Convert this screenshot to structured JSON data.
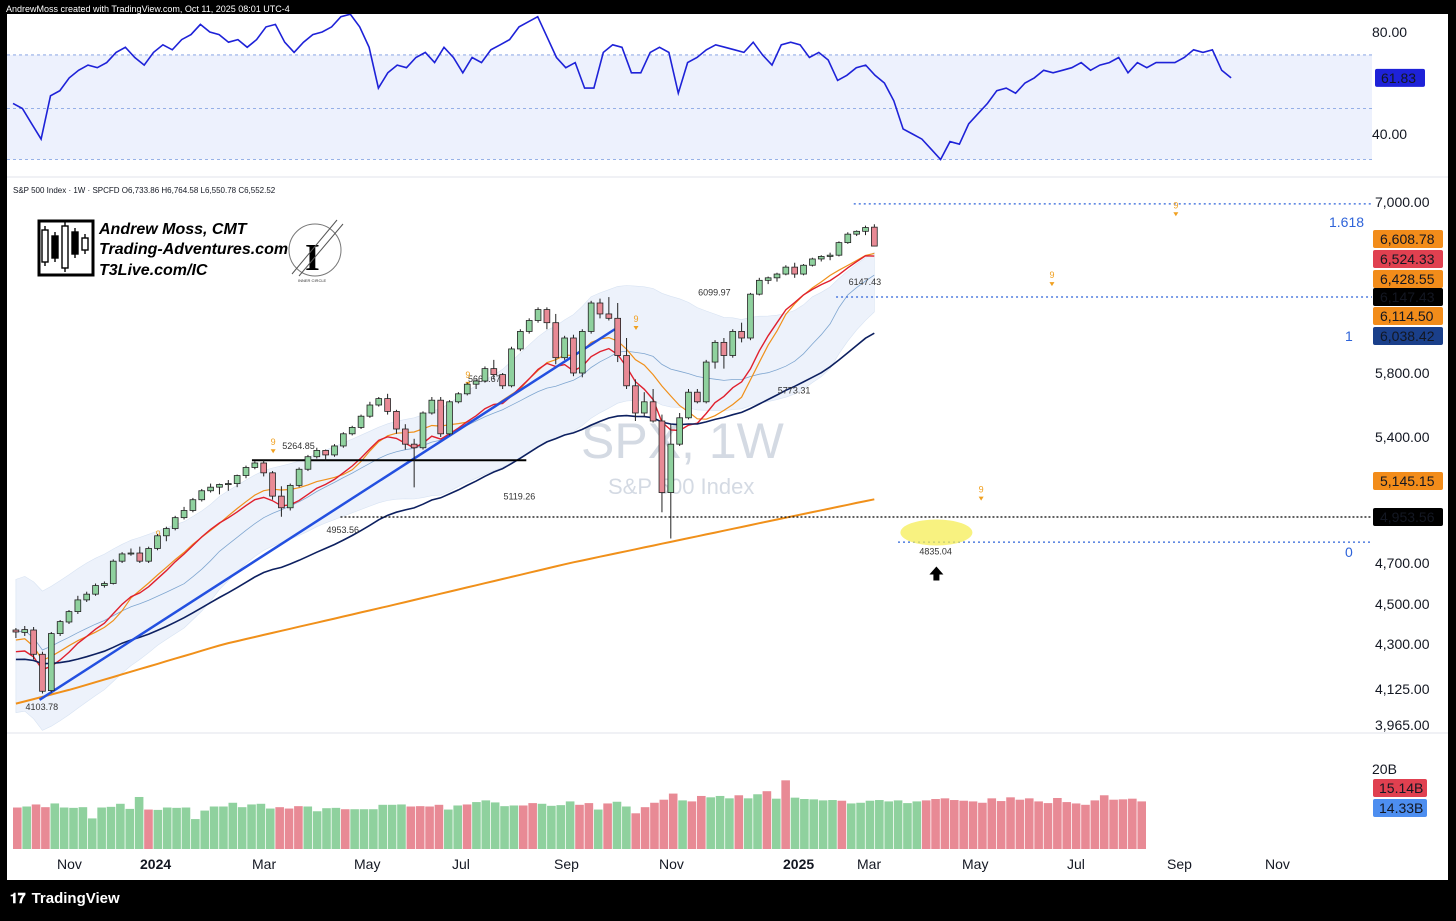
{
  "header": {
    "attribution": "AndrewMoss created with TradingView.com, Oct 11, 2025 08:01 UTC-4",
    "legend": "S&P 500 Index · 1W · SPCFD  O6,733.86  H6,764.58  L6,550.78  C6,552.52"
  },
  "watermark": {
    "symbol": "SPX, 1W",
    "name": "S&P 500 Index"
  },
  "branding": {
    "line1": "Andrew Moss, CMT",
    "line2": "Trading-Adventures.com",
    "line3": "T3Live.com/IC",
    "badge_text": "INNER CIRCLE"
  },
  "footer": {
    "brand": "TradingView"
  },
  "colors": {
    "up": "#8fd19e",
    "down": "#e88a95",
    "rsi": "#1e22d8",
    "ma_red": "#e0202e",
    "ma_orange": "#f0901a",
    "ma_navy": "#0d2060",
    "trend": "#2350e0",
    "fib": "#2e63d9"
  },
  "chart_data": [
    {
      "type": "line",
      "title": "RSI",
      "ylim": [
        26,
        93
      ],
      "y_ticks": [
        "80.00",
        "40.00"
      ],
      "last_value": "61.83",
      "bands": [
        71,
        50,
        30
      ],
      "values": [
        52,
        50,
        44,
        38,
        55,
        57,
        62,
        65,
        67,
        66,
        68,
        72,
        74,
        70,
        67,
        72,
        75,
        73,
        77,
        79,
        83,
        80,
        79,
        76,
        77,
        74,
        77,
        82,
        83,
        76,
        72,
        76,
        79,
        80,
        82,
        86,
        87,
        82,
        74,
        58,
        64,
        67,
        66,
        70,
        72,
        68,
        74,
        70,
        64,
        70,
        68,
        73,
        75,
        77,
        82,
        84,
        86,
        78,
        70,
        66,
        68,
        58,
        58,
        72,
        75,
        74,
        64,
        64,
        72,
        74,
        72,
        56,
        68,
        70,
        73,
        75,
        74,
        73,
        72,
        76,
        71,
        67,
        75,
        76,
        75,
        70,
        72,
        69,
        61,
        63,
        66,
        67,
        63,
        60,
        53,
        42,
        40,
        38,
        34,
        30,
        37,
        36,
        44,
        48,
        52,
        57,
        58,
        56,
        60,
        62,
        65,
        64,
        65,
        66,
        68,
        65,
        67,
        68,
        70,
        64,
        68,
        66,
        68,
        68,
        68,
        70,
        73,
        72,
        73,
        65,
        62
      ]
    },
    {
      "type": "candlestick",
      "title": "SPX, 1W",
      "x_labels": [
        "Nov",
        "2024",
        "Mar",
        "May",
        "Jul",
        "Sep",
        "Nov",
        "2025",
        "Mar",
        "May",
        "Jul",
        "Sep",
        "Nov"
      ],
      "y_ticks": [
        "7,000.00",
        "5,800.00",
        "5,400.00",
        "4,700.00",
        "4,500.00",
        "4,300.00",
        "4,125.00",
        "3,965.00"
      ],
      "price_labels": [
        {
          "text": "6,608.78",
          "bg": "#f28c1a",
          "fg": "#000000"
        },
        {
          "text": "6,524.33",
          "bg": "#e04050",
          "fg": "#ffffff"
        },
        {
          "text": "6,428.55",
          "bg": "#f28c1a",
          "fg": "#000000"
        },
        {
          "text": "6,147.43",
          "bg": "#000000",
          "fg": "#ffffff"
        },
        {
          "text": "6,114.50",
          "bg": "#f28c1a",
          "fg": "#000000"
        },
        {
          "text": "6,038.42",
          "bg": "#1a3f8a",
          "fg": "#ffffff"
        },
        {
          "text": "5,145.15",
          "bg": "#f28c1a",
          "fg": "#000000"
        },
        {
          "text": "4,953.56",
          "bg": "#000000",
          "fg": "#ffffff"
        }
      ],
      "fib_labels": [
        "1.618",
        "1",
        "0"
      ],
      "annotations": [
        "4103.78",
        "5264.85",
        "4953.56",
        "5669.67",
        "5119.26",
        "6099.97",
        "5773.31",
        "6147.43",
        "4835.04"
      ],
      "td_labels": [
        "9",
        "9",
        "9",
        "9",
        "9",
        "9",
        "9"
      ],
      "last_candle": {
        "open": 6733.86,
        "high": 6764.58,
        "low": 6550.78,
        "close": 6552.52
      },
      "candles": [
        [
          4370,
          4380,
          4330,
          4360
        ],
        [
          4358,
          4390,
          4340,
          4372
        ],
        [
          4370,
          4385,
          4240,
          4260
        ],
        [
          4260,
          4270,
          4105,
          4115
        ],
        [
          4118,
          4360,
          4110,
          4352
        ],
        [
          4352,
          4420,
          4340,
          4412
        ],
        [
          4410,
          4470,
          4400,
          4462
        ],
        [
          4462,
          4540,
          4450,
          4520
        ],
        [
          4520,
          4560,
          4510,
          4548
        ],
        [
          4548,
          4600,
          4540,
          4590
        ],
        [
          4590,
          4610,
          4580,
          4600
        ],
        [
          4600,
          4720,
          4595,
          4710
        ],
        [
          4710,
          4760,
          4700,
          4750
        ],
        [
          4750,
          4780,
          4740,
          4755
        ],
        [
          4755,
          4790,
          4700,
          4710
        ],
        [
          4710,
          4790,
          4700,
          4780
        ],
        [
          4780,
          4860,
          4770,
          4850
        ],
        [
          4850,
          4900,
          4820,
          4890
        ],
        [
          4890,
          4960,
          4880,
          4950
        ],
        [
          4950,
          5010,
          4940,
          4990
        ],
        [
          4990,
          5060,
          4980,
          5050
        ],
        [
          5050,
          5110,
          5040,
          5100
        ],
        [
          5100,
          5140,
          5090,
          5120
        ],
        [
          5120,
          5140,
          5080,
          5135
        ],
        [
          5135,
          5160,
          5100,
          5140
        ],
        [
          5140,
          5190,
          5120,
          5185
        ],
        [
          5185,
          5240,
          5170,
          5230
        ],
        [
          5230,
          5265,
          5220,
          5255
        ],
        [
          5255,
          5270,
          5180,
          5200
        ],
        [
          5200,
          5210,
          5050,
          5070
        ],
        [
          5070,
          5125,
          4955,
          5005
        ],
        [
          5005,
          5140,
          4990,
          5130
        ],
        [
          5130,
          5230,
          5120,
          5220
        ],
        [
          5220,
          5300,
          5210,
          5290
        ],
        [
          5290,
          5340,
          5280,
          5325
        ],
        [
          5325,
          5330,
          5270,
          5300
        ],
        [
          5300,
          5360,
          5290,
          5350
        ],
        [
          5350,
          5430,
          5340,
          5420
        ],
        [
          5420,
          5470,
          5410,
          5460
        ],
        [
          5460,
          5540,
          5450,
          5530
        ],
        [
          5530,
          5620,
          5520,
          5600
        ],
        [
          5600,
          5650,
          5590,
          5640
        ],
        [
          5640,
          5670,
          5540,
          5560
        ],
        [
          5560,
          5570,
          5420,
          5450
        ],
        [
          5450,
          5480,
          5330,
          5360
        ],
        [
          5360,
          5390,
          5119,
          5340
        ],
        [
          5340,
          5560,
          5330,
          5550
        ],
        [
          5550,
          5650,
          5540,
          5630
        ],
        [
          5630,
          5650,
          5400,
          5420
        ],
        [
          5420,
          5630,
          5410,
          5620
        ],
        [
          5620,
          5680,
          5610,
          5670
        ],
        [
          5670,
          5740,
          5660,
          5730
        ],
        [
          5730,
          5760,
          5700,
          5750
        ],
        [
          5750,
          5830,
          5740,
          5820
        ],
        [
          5820,
          5860,
          5760,
          5790
        ],
        [
          5790,
          5800,
          5700,
          5720
        ],
        [
          5720,
          5920,
          5710,
          5910
        ],
        [
          5910,
          6000,
          5900,
          5990
        ],
        [
          5990,
          6050,
          5980,
          6040
        ],
        [
          6040,
          6100,
          6030,
          6090
        ],
        [
          6090,
          6100,
          6000,
          6030
        ],
        [
          6030,
          6070,
          5840,
          5870
        ],
        [
          5870,
          5970,
          5860,
          5960
        ],
        [
          5960,
          5975,
          5780,
          5800
        ],
        [
          5800,
          6000,
          5773,
          5990
        ],
        [
          5990,
          6130,
          5980,
          6120
        ],
        [
          6120,
          6140,
          6050,
          6070
        ],
        [
          6070,
          6147,
          6040,
          6050
        ],
        [
          6050,
          6120,
          5850,
          5880
        ],
        [
          5880,
          5960,
          5700,
          5720
        ],
        [
          5720,
          5760,
          5500,
          5550
        ],
        [
          5550,
          5680,
          5530,
          5620
        ],
        [
          5620,
          5700,
          5490,
          5500
        ],
        [
          5500,
          5540,
          4980,
          5090
        ],
        [
          5090,
          5480,
          4835,
          5360
        ],
        [
          5360,
          5550,
          5350,
          5520
        ],
        [
          5520,
          5700,
          5510,
          5680
        ],
        [
          5680,
          5700,
          5610,
          5620
        ],
        [
          5620,
          5860,
          5610,
          5850
        ],
        [
          5850,
          5950,
          5820,
          5940
        ],
        [
          5940,
          5960,
          5820,
          5880
        ],
        [
          5880,
          6000,
          5870,
          5990
        ],
        [
          5990,
          6030,
          5940,
          5960
        ],
        [
          5960,
          6180,
          5950,
          6170
        ],
        [
          6170,
          6300,
          6160,
          6280
        ],
        [
          6280,
          6310,
          6250,
          6300
        ],
        [
          6300,
          6340,
          6270,
          6330
        ],
        [
          6330,
          6400,
          6320,
          6385
        ],
        [
          6385,
          6420,
          6300,
          6330
        ],
        [
          6330,
          6410,
          6320,
          6400
        ],
        [
          6400,
          6460,
          6390,
          6450
        ],
        [
          6450,
          6480,
          6430,
          6470
        ],
        [
          6470,
          6500,
          6440,
          6480
        ],
        [
          6480,
          6590,
          6470,
          6580
        ],
        [
          6580,
          6680,
          6570,
          6660
        ],
        [
          6660,
          6700,
          6640,
          6690
        ],
        [
          6690,
          6750,
          6650,
          6730
        ],
        [
          6733.86,
          6764.58,
          6550.78,
          6552.52
        ]
      ]
    },
    {
      "type": "bar",
      "title": "Volume",
      "y_ticks": [
        "20B"
      ],
      "last_labels": [
        {
          "text": "15.14B",
          "bg": "#e04050"
        },
        {
          "text": "14.33B",
          "bg": "#4d8ef0"
        }
      ],
      "values": [
        16.2,
        16.5,
        17.1,
        16.3,
        17.4,
        16.2,
        16.1,
        16.3,
        13.0,
        16.2,
        16.4,
        17.3,
        15.8,
        19.3,
        15.6,
        15.5,
        16.2,
        16.1,
        16.2,
        12.8,
        15.3,
        16.5,
        16.5,
        17.6,
        16.3,
        17.1,
        17.3,
        15.9,
        16.3,
        15.9,
        16.6,
        16.5,
        15.1,
        16.0,
        16.1,
        15.7,
        15.7,
        15.7,
        15.7,
        17.0,
        17.0,
        17.1,
        16.5,
        16.6,
        16.5,
        17.0,
        15.6,
        16.8,
        17.1,
        17.8,
        18.3,
        17.7,
        16.6,
        16.8,
        16.8,
        17.5,
        17.3,
        16.7,
        16.9,
        18.0,
        17.0,
        17.5,
        15.6,
        17.4,
        17.9,
        16.5,
        14.5,
        16.3,
        17.6,
        18.5,
        20.3,
        18.3,
        18.0,
        19.6,
        19.2,
        19.6,
        18.9,
        19.8,
        18.9,
        20.1,
        21.0,
        18.8,
        24.2,
        19.1,
        18.7,
        18.6,
        18.3,
        18.4,
        18.2,
        17.4,
        17.6,
        18.2,
        18.4,
        18.0,
        18.3,
        17.5,
        18.0,
        18.3,
        18.7,
        18.9,
        18.4,
        18.2,
        18.0,
        17.6,
        18.9,
        18.1,
        19.2,
        18.5,
        18.9,
        18.0,
        17.5,
        19.0,
        17.8,
        17.4,
        17.0,
        18.3,
        19.8,
        18.5,
        18.6,
        18.8,
        18.0
      ]
    }
  ]
}
